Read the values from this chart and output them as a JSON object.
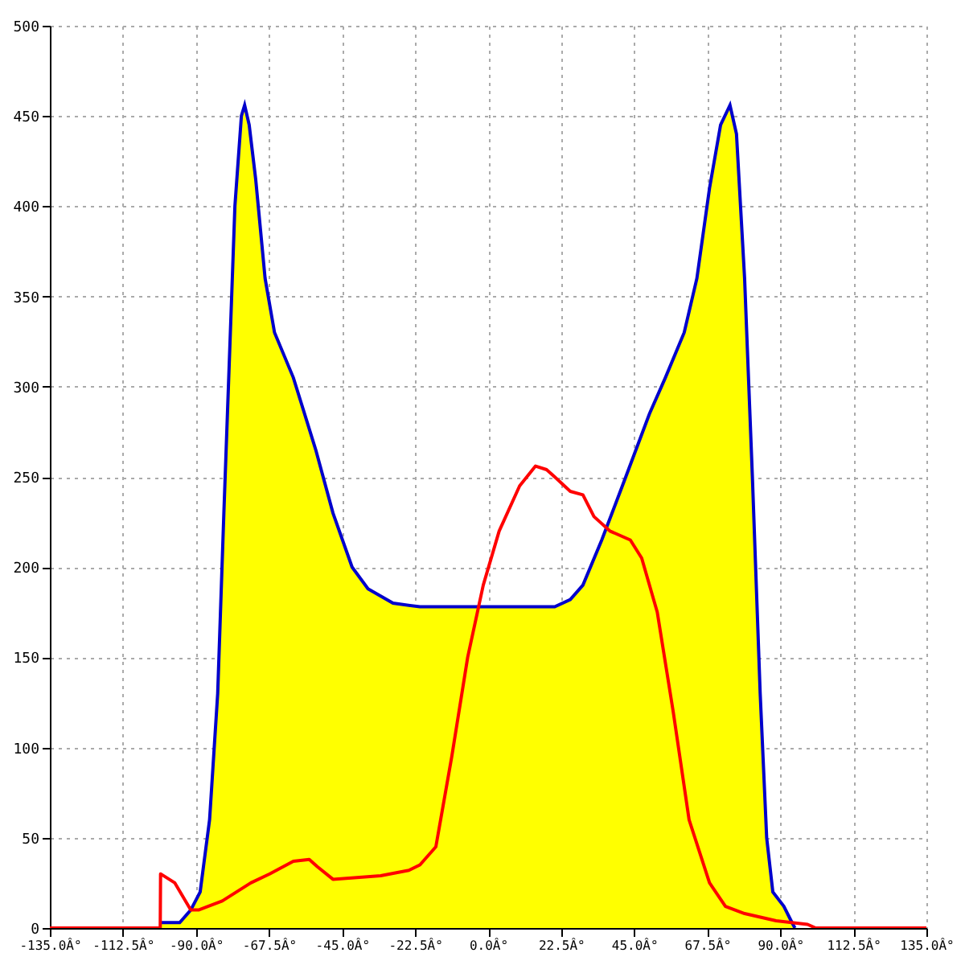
{
  "chart_data": {
    "type": "area",
    "xlim": [
      -135,
      135
    ],
    "ylim": [
      0,
      500
    ],
    "xticks": [
      {
        "value": -135,
        "label": "-135.0Â°"
      },
      {
        "value": -112.5,
        "label": "-112.5Â°"
      },
      {
        "value": -90,
        "label": "-90.0Â°"
      },
      {
        "value": -67.5,
        "label": "-67.5Â°"
      },
      {
        "value": -45,
        "label": "-45.0Â°"
      },
      {
        "value": -22.5,
        "label": "-22.5Â°"
      },
      {
        "value": 0,
        "label": "0.0Â°"
      },
      {
        "value": 22.5,
        "label": "22.5Â°"
      },
      {
        "value": 45,
        "label": "45.0Â°"
      },
      {
        "value": 67.5,
        "label": "67.5Â°"
      },
      {
        "value": 90,
        "label": "90.0Â°"
      },
      {
        "value": 112.5,
        "label": "112.5Â°"
      },
      {
        "value": 135,
        "label": "135.0Â°"
      }
    ],
    "yticks": [
      0,
      50,
      100,
      150,
      200,
      250,
      300,
      350,
      400,
      450,
      500
    ],
    "grid": true,
    "series": [
      {
        "color": "#ffff00",
        "x": [
          -101,
          -95,
          -91.6,
          -88.7,
          -85.8,
          -83.3,
          -81.4,
          -79.4,
          -78,
          -76,
          -75,
          -73.6,
          -71.6,
          -68.7,
          -65.8,
          -60,
          -53.1,
          -47.8,
          -41.9,
          -37,
          -29.3,
          -21,
          0,
          20.5,
          25.3,
          29.2,
          35,
          42.4,
          49.7,
          54.6,
          60.4,
          64.3,
          68.2,
          71.6,
          74.5,
          76.5,
          79,
          81.4,
          83.8,
          85.8,
          87.7,
          91.1,
          93.6,
          94.5
        ],
        "values": [
          3,
          3,
          10,
          20,
          60,
          130,
          230,
          330,
          400,
          450,
          456,
          445,
          415,
          360,
          330,
          305,
          265,
          230,
          200,
          188,
          180,
          178,
          178,
          178,
          182,
          190,
          215,
          250,
          285,
          305,
          330,
          360,
          410,
          445,
          456,
          440,
          360,
          250,
          130,
          50,
          20,
          12,
          3,
          0
        ]
      },
      {
        "type": "line",
        "color": "#ff0000",
        "x": [
          -135,
          -101,
          -100.9,
          -96.5,
          -91.6,
          -89.2,
          -81.9,
          -73.1,
          -67.3,
          -60,
          -55.1,
          -52.6,
          -47.8,
          -33.1,
          -24.4,
          -21,
          -16.1,
          -11.2,
          -6.3,
          -1.5,
          3.4,
          9.7,
          14.6,
          18,
          20.5,
          25.3,
          29.2,
          32.6,
          37.5,
          43.8,
          47.3,
          52.1,
          57,
          61.9,
          68.2,
          73.1,
          79,
          88.7,
          98.4,
          100.9,
          135
        ],
        "values": [
          0,
          0,
          30,
          25,
          10,
          10,
          15,
          25,
          30,
          37,
          38,
          34,
          27,
          29,
          32,
          35,
          45,
          95,
          150,
          190,
          220,
          245,
          256,
          254,
          250,
          242,
          240,
          228,
          220,
          215,
          205,
          175,
          120,
          60,
          25,
          12,
          8,
          4,
          2,
          0,
          0
        ]
      }
    ]
  }
}
